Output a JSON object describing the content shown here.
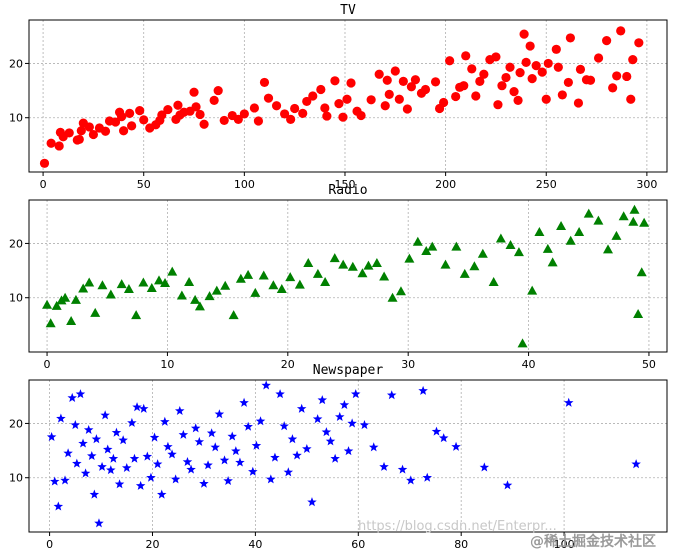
{
  "watermark": {
    "url": "https://blog.csdn.net/Enterpr...",
    "brand": "@稀土掘金技术社区"
  },
  "chart_data": [
    {
      "type": "scatter",
      "title": "TV",
      "marker": "circle",
      "color": "#ff0000",
      "xlim": [
        -7,
        310
      ],
      "ylim": [
        0,
        28
      ],
      "xticks": [
        0,
        50,
        100,
        150,
        200,
        250,
        300
      ],
      "yticks": [
        10,
        20
      ],
      "grid": true,
      "points": [
        [
          0.7,
          1.6
        ],
        [
          4,
          5.3
        ],
        [
          8,
          4.8
        ],
        [
          8.6,
          7.3
        ],
        [
          10,
          6.5
        ],
        [
          13,
          7.2
        ],
        [
          17,
          5.9
        ],
        [
          18,
          6
        ],
        [
          19,
          7.6
        ],
        [
          20,
          9
        ],
        [
          23,
          8.3
        ],
        [
          25,
          6.9
        ],
        [
          28,
          8.1
        ],
        [
          31,
          7.5
        ],
        [
          33,
          9.4
        ],
        [
          36,
          9.2
        ],
        [
          38,
          11
        ],
        [
          39,
          10.2
        ],
        [
          40,
          7.6
        ],
        [
          43,
          10.8
        ],
        [
          44,
          8.5
        ],
        [
          48,
          11.3
        ],
        [
          50,
          9.6
        ],
        [
          53,
          8.1
        ],
        [
          56,
          8.7
        ],
        [
          58,
          9.5
        ],
        [
          59,
          10.5
        ],
        [
          62,
          11.5
        ],
        [
          66,
          9.7
        ],
        [
          67,
          12.3
        ],
        [
          68,
          10.5
        ],
        [
          70,
          11
        ],
        [
          73,
          11.2
        ],
        [
          75,
          14.7
        ],
        [
          76,
          12
        ],
        [
          78,
          10.6
        ],
        [
          80,
          8.8
        ],
        [
          85,
          13.2
        ],
        [
          87,
          15
        ],
        [
          90,
          9.5
        ],
        [
          94,
          10.4
        ],
        [
          97,
          9.7
        ],
        [
          100,
          10.7
        ],
        [
          105,
          11.8
        ],
        [
          107,
          9.4
        ],
        [
          110,
          16.5
        ],
        [
          112,
          13.6
        ],
        [
          116,
          12.2
        ],
        [
          120,
          10.7
        ],
        [
          123,
          9.7
        ],
        [
          125,
          11.7
        ],
        [
          129,
          10.8
        ],
        [
          131,
          13
        ],
        [
          134,
          14
        ],
        [
          138,
          15.2
        ],
        [
          140,
          11.8
        ],
        [
          141,
          10.3
        ],
        [
          145,
          16.8
        ],
        [
          147,
          12.6
        ],
        [
          149,
          10.1
        ],
        [
          151,
          13.4
        ],
        [
          153,
          16.4
        ],
        [
          156,
          11.2
        ],
        [
          158,
          10.4
        ],
        [
          163,
          13.3
        ],
        [
          167,
          18
        ],
        [
          170,
          12.2
        ],
        [
          171,
          16.9
        ],
        [
          172,
          14.3
        ],
        [
          175,
          18.6
        ],
        [
          177,
          13.4
        ],
        [
          179,
          16.7
        ],
        [
          181,
          11.6
        ],
        [
          183,
          15.7
        ],
        [
          185,
          17
        ],
        [
          188,
          14.5
        ],
        [
          190,
          15.2
        ],
        [
          195,
          16.6
        ],
        [
          197,
          11.7
        ],
        [
          199,
          12.8
        ],
        [
          202,
          20.5
        ],
        [
          205,
          13.9
        ],
        [
          207,
          15.6
        ],
        [
          209,
          15.9
        ],
        [
          210,
          21.4
        ],
        [
          213,
          19
        ],
        [
          215,
          14
        ],
        [
          217,
          16.7
        ],
        [
          219,
          18
        ],
        [
          222,
          20.7
        ],
        [
          225,
          21.2
        ],
        [
          226,
          12.4
        ],
        [
          228,
          15.9
        ],
        [
          230,
          17.4
        ],
        [
          232,
          19.3
        ],
        [
          234,
          14.8
        ],
        [
          236,
          13.2
        ],
        [
          237,
          18.3
        ],
        [
          239,
          25.4
        ],
        [
          240,
          20.2
        ],
        [
          242,
          23.2
        ],
        [
          243,
          17.2
        ],
        [
          245,
          19.6
        ],
        [
          248,
          18.4
        ],
        [
          250,
          13.4
        ],
        [
          251,
          20
        ],
        [
          255,
          22.6
        ],
        [
          256,
          19.3
        ],
        [
          258,
          14.2
        ],
        [
          261,
          16.5
        ],
        [
          262,
          24.7
        ],
        [
          266,
          12.7
        ],
        [
          267,
          18.9
        ],
        [
          270,
          17
        ],
        [
          272,
          16.9
        ],
        [
          276,
          21
        ],
        [
          280,
          24.2
        ],
        [
          283,
          15.5
        ],
        [
          285,
          17.7
        ],
        [
          287,
          26
        ],
        [
          290,
          17.6
        ],
        [
          292,
          13.4
        ],
        [
          293,
          20.7
        ],
        [
          296,
          23.8
        ]
      ]
    },
    {
      "type": "scatter",
      "title": "Radio",
      "marker": "triangle",
      "color": "#008000",
      "xlim": [
        -1.5,
        51.5
      ],
      "ylim": [
        0,
        28
      ],
      "xticks": [
        0,
        10,
        20,
        30,
        40,
        50
      ],
      "yticks": [
        10,
        20
      ],
      "grid": true,
      "points": [
        [
          0,
          8.7
        ],
        [
          0.3,
          5.3
        ],
        [
          0.8,
          8.5
        ],
        [
          1.2,
          9.5
        ],
        [
          1.5,
          10
        ],
        [
          2,
          5.7
        ],
        [
          2.4,
          9.6
        ],
        [
          3,
          11.7
        ],
        [
          3.5,
          12.8
        ],
        [
          4,
          7.2
        ],
        [
          4.6,
          12.3
        ],
        [
          5.3,
          10.6
        ],
        [
          6.2,
          12.5
        ],
        [
          6.8,
          11.6
        ],
        [
          7.4,
          6.8
        ],
        [
          8,
          12.8
        ],
        [
          8.7,
          11.8
        ],
        [
          9.3,
          13.2
        ],
        [
          9.8,
          12.7
        ],
        [
          10.4,
          14.8
        ],
        [
          11.2,
          10.4
        ],
        [
          11.8,
          12.9
        ],
        [
          12.3,
          9.6
        ],
        [
          12.7,
          8.4
        ],
        [
          13.5,
          10.3
        ],
        [
          14.1,
          11.3
        ],
        [
          14.8,
          12.2
        ],
        [
          15.5,
          6.8
        ],
        [
          16.1,
          13.5
        ],
        [
          16.7,
          14.2
        ],
        [
          17.3,
          10.9
        ],
        [
          18,
          14.1
        ],
        [
          18.8,
          12.3
        ],
        [
          19.5,
          11.6
        ],
        [
          20.2,
          13.8
        ],
        [
          21,
          12.4
        ],
        [
          21.7,
          16.4
        ],
        [
          22.5,
          14.4
        ],
        [
          23.1,
          12.9
        ],
        [
          23.9,
          17.3
        ],
        [
          24.6,
          16.1
        ],
        [
          25.4,
          15.7
        ],
        [
          26.2,
          14.5
        ],
        [
          26.7,
          15.9
        ],
        [
          27.4,
          16.4
        ],
        [
          28,
          13.9
        ],
        [
          28.7,
          10
        ],
        [
          29.4,
          11.2
        ],
        [
          30.1,
          17.2
        ],
        [
          30.8,
          20.3
        ],
        [
          31.5,
          18.6
        ],
        [
          32,
          19.4
        ],
        [
          33.1,
          16.1
        ],
        [
          34,
          19.4
        ],
        [
          34.7,
          14.4
        ],
        [
          35.5,
          15.8
        ],
        [
          36.2,
          18.1
        ],
        [
          37.1,
          12.9
        ],
        [
          37.7,
          20.9
        ],
        [
          38.5,
          19.7
        ],
        [
          39.2,
          18.4
        ],
        [
          39.5,
          1.6
        ],
        [
          40.3,
          11.3
        ],
        [
          40.9,
          22.1
        ],
        [
          41.6,
          19
        ],
        [
          42,
          16.5
        ],
        [
          42.7,
          23.2
        ],
        [
          43.5,
          20.5
        ],
        [
          44.2,
          22.1
        ],
        [
          45,
          25.5
        ],
        [
          45.8,
          24.2
        ],
        [
          46.6,
          18.9
        ],
        [
          47.3,
          21.4
        ],
        [
          47.9,
          25
        ],
        [
          48.7,
          24
        ],
        [
          49.1,
          7
        ],
        [
          49.4,
          14.7
        ],
        [
          49.6,
          23.8
        ],
        [
          48.8,
          26.2
        ]
      ]
    },
    {
      "type": "scatter",
      "title": "Newspaper",
      "marker": "star",
      "color": "#0000ff",
      "xlim": [
        -4,
        120
      ],
      "ylim": [
        0,
        28
      ],
      "xticks": [
        0,
        20,
        40,
        60,
        80,
        100
      ],
      "yticks": [
        10,
        20
      ],
      "grid": true,
      "points": [
        [
          0.4,
          17.5
        ],
        [
          1,
          9.3
        ],
        [
          1.7,
          4.7
        ],
        [
          2.2,
          20.9
        ],
        [
          3,
          9.5
        ],
        [
          3.6,
          14.5
        ],
        [
          4.4,
          24.7
        ],
        [
          5,
          19.7
        ],
        [
          5.3,
          12.6
        ],
        [
          6,
          25.4
        ],
        [
          6.5,
          16.3
        ],
        [
          7,
          10.8
        ],
        [
          7.6,
          18.8
        ],
        [
          8.2,
          14
        ],
        [
          8.7,
          6.9
        ],
        [
          9.1,
          17.1
        ],
        [
          9.6,
          1.6
        ],
        [
          10.2,
          12
        ],
        [
          10.8,
          21.5
        ],
        [
          11.3,
          15.2
        ],
        [
          11.9,
          11.4
        ],
        [
          12.4,
          13.5
        ],
        [
          13,
          18.3
        ],
        [
          13.6,
          8.8
        ],
        [
          14.3,
          16.9
        ],
        [
          15,
          11.8
        ],
        [
          16,
          20.1
        ],
        [
          16.5,
          13.5
        ],
        [
          17,
          23
        ],
        [
          17.7,
          8.5
        ],
        [
          18.3,
          22.7
        ],
        [
          19,
          13.9
        ],
        [
          19.7,
          10
        ],
        [
          20.4,
          17.4
        ],
        [
          21,
          12.5
        ],
        [
          21.8,
          6.9
        ],
        [
          22.4,
          20.3
        ],
        [
          23,
          15.7
        ],
        [
          23.8,
          14.3
        ],
        [
          24.5,
          9.7
        ],
        [
          25.3,
          22.3
        ],
        [
          26,
          17.9
        ],
        [
          26.8,
          12.9
        ],
        [
          27.5,
          11.5
        ],
        [
          28.4,
          19.1
        ],
        [
          29.1,
          16.6
        ],
        [
          30,
          8.9
        ],
        [
          30.8,
          12.3
        ],
        [
          31.5,
          18.2
        ],
        [
          32.2,
          15.6
        ],
        [
          33,
          21.7
        ],
        [
          34,
          13.2
        ],
        [
          34.7,
          9.4
        ],
        [
          35.5,
          17.6
        ],
        [
          36.2,
          14.9
        ],
        [
          37,
          12.8
        ],
        [
          37.8,
          23.8
        ],
        [
          38.6,
          19.4
        ],
        [
          39.5,
          11.1
        ],
        [
          40.2,
          15.9
        ],
        [
          41,
          20.4
        ],
        [
          42.1,
          27
        ],
        [
          43,
          9.7
        ],
        [
          43.8,
          13.7
        ],
        [
          44.8,
          25.4
        ],
        [
          45.6,
          19.5
        ],
        [
          46.4,
          11
        ],
        [
          47.2,
          17.1
        ],
        [
          48.1,
          14.1
        ],
        [
          49,
          22.7
        ],
        [
          50,
          15.3
        ],
        [
          51,
          5.5
        ],
        [
          52.1,
          20.8
        ],
        [
          53,
          24.3
        ],
        [
          53.8,
          18.4
        ],
        [
          54.6,
          16.7
        ],
        [
          55.5,
          13.5
        ],
        [
          56.4,
          21.2
        ],
        [
          57.3,
          23.4
        ],
        [
          58.1,
          14.9
        ],
        [
          58.8,
          20
        ],
        [
          59.5,
          25.4
        ],
        [
          61.2,
          19.7
        ],
        [
          63,
          15.6
        ],
        [
          65,
          12
        ],
        [
          66.5,
          25.2
        ],
        [
          68.6,
          11.5
        ],
        [
          70.2,
          9.5
        ],
        [
          72.6,
          26
        ],
        [
          73.4,
          10
        ],
        [
          75.2,
          18.5
        ],
        [
          76.6,
          17.3
        ],
        [
          79,
          15.7
        ],
        [
          84.5,
          11.9
        ],
        [
          89,
          8.6
        ],
        [
          100.9,
          23.8
        ],
        [
          114,
          12.5
        ]
      ]
    }
  ]
}
